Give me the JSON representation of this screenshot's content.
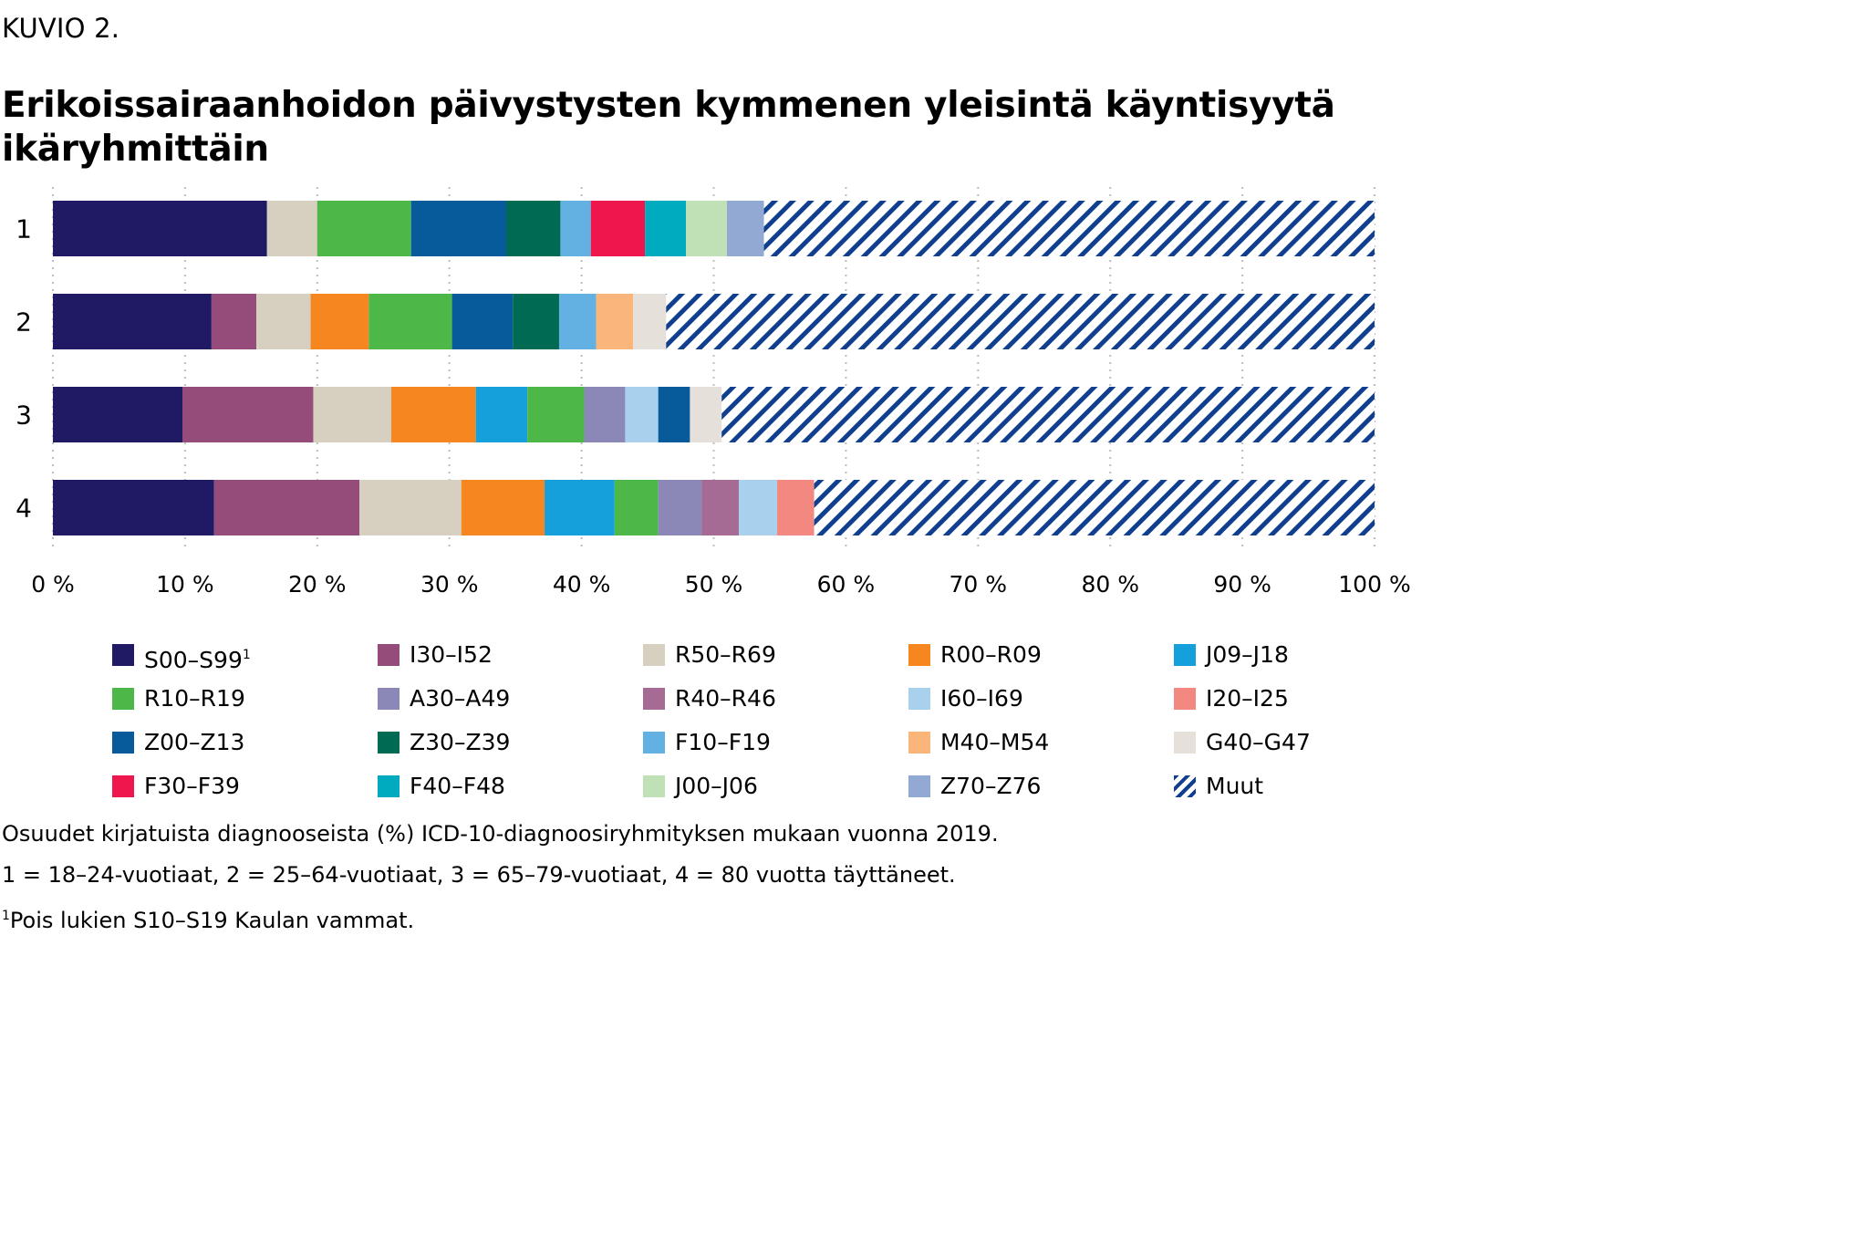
{
  "figure_label": "KUVIO 2.",
  "title_line1": "Erikoissairaanhoidon päivystysten kymmenen yleisintä käyntisyytä",
  "title_line2": "ikäryhmittäin",
  "chart_data": {
    "type": "bar",
    "orientation": "horizontal",
    "stacked": true,
    "title": "Erikoissairaanhoidon päivystysten kymmenen yleisintä käyntisyytä ikäryhmittäin",
    "categories": [
      "1",
      "2",
      "3",
      "4"
    ],
    "xlim": [
      0,
      100
    ],
    "x_tick_labels": [
      "0 %",
      "10 %",
      "20 %",
      "30 %",
      "40 %",
      "50 %",
      "60 %",
      "70 %",
      "80 %",
      "90 %",
      "100 %"
    ],
    "grid": "vertical dotted",
    "legend_position": "bottom",
    "series_colors": {
      "S00–S99": "#1f1a63",
      "I30–I52": "#954c7b",
      "R50–R69": "#d7cfbf",
      "R00–R09": "#f58620",
      "J09–J18": "#16a0db",
      "R10–R19": "#4db848",
      "A30–A49": "#8b88b8",
      "R40–R46": "#a66b95",
      "I60–I69": "#a9d1ee",
      "I20–I25": "#f28880",
      "Z00–Z13": "#075b9b",
      "Z30–Z39": "#006b52",
      "F10–F19": "#63b1e2",
      "M40–M54": "#f9b57a",
      "G40–G47": "#e5e1da",
      "F30–F39": "#ed174d",
      "F40–F48": "#00abc0",
      "J00–J06": "#bfe1b5",
      "Z70–Z76": "#92a9d3",
      "Muut": "#103f8f"
    },
    "bars": [
      {
        "category": "1",
        "segments": [
          {
            "series": "S00–S99",
            "value": 16.2
          },
          {
            "series": "R50–R69",
            "value": 3.8
          },
          {
            "series": "R10–R19",
            "value": 7.1
          },
          {
            "series": "Z00–Z13",
            "value": 7.2
          },
          {
            "series": "Z30–Z39",
            "value": 4.1
          },
          {
            "series": "F10–F19",
            "value": 2.3
          },
          {
            "series": "F30–F39",
            "value": 4.1
          },
          {
            "series": "F40–F48",
            "value": 3.1
          },
          {
            "series": "J00–J06",
            "value": 3.1
          },
          {
            "series": "Z70–Z76",
            "value": 2.8
          },
          {
            "series": "Muut",
            "value": 46.2
          }
        ]
      },
      {
        "category": "2",
        "segments": [
          {
            "series": "S00–S99",
            "value": 12.0
          },
          {
            "series": "I30–I52",
            "value": 3.4
          },
          {
            "series": "R50–R69",
            "value": 4.1
          },
          {
            "series": "R00–R09",
            "value": 4.4
          },
          {
            "series": "R10–R19",
            "value": 6.3
          },
          {
            "series": "Z00–Z13",
            "value": 4.6
          },
          {
            "series": "Z30–Z39",
            "value": 3.5
          },
          {
            "series": "F10–F19",
            "value": 2.8
          },
          {
            "series": "M40–M54",
            "value": 2.8
          },
          {
            "series": "G40–G47",
            "value": 2.5
          },
          {
            "series": "Muut",
            "value": 53.6
          }
        ]
      },
      {
        "category": "3",
        "segments": [
          {
            "series": "S00–S99",
            "value": 9.8
          },
          {
            "series": "I30–I52",
            "value": 9.9
          },
          {
            "series": "R50–R69",
            "value": 5.9
          },
          {
            "series": "R00–R09",
            "value": 6.4
          },
          {
            "series": "J09–J18",
            "value": 3.9
          },
          {
            "series": "R10–R19",
            "value": 4.3
          },
          {
            "series": "A30–A49",
            "value": 3.1
          },
          {
            "series": "I60–I69",
            "value": 2.5
          },
          {
            "series": "Z00–Z13",
            "value": 2.4
          },
          {
            "series": "G40–G47",
            "value": 2.4
          },
          {
            "series": "Muut",
            "value": 49.4
          }
        ]
      },
      {
        "category": "4",
        "segments": [
          {
            "series": "S00–S99",
            "value": 12.2
          },
          {
            "series": "I30–I52",
            "value": 11.0
          },
          {
            "series": "R50–R69",
            "value": 7.7
          },
          {
            "series": "R00–R09",
            "value": 6.3
          },
          {
            "series": "J09–J18",
            "value": 5.3
          },
          {
            "series": "R10–R19",
            "value": 3.3
          },
          {
            "series": "A30–A49",
            "value": 3.3
          },
          {
            "series": "R40–R46",
            "value": 2.8
          },
          {
            "series": "I60–I69",
            "value": 2.9
          },
          {
            "series": "I20–I25",
            "value": 2.8
          },
          {
            "series": "Muut",
            "value": 42.4
          }
        ]
      }
    ]
  },
  "legend": [
    {
      "label": "S00–S99",
      "sup": "1",
      "color": "#1f1a63"
    },
    {
      "label": "I30–I52",
      "color": "#954c7b"
    },
    {
      "label": "R50–R69",
      "color": "#d7cfbf"
    },
    {
      "label": "R00–R09",
      "color": "#f58620"
    },
    {
      "label": "J09–J18",
      "color": "#16a0db"
    },
    {
      "label": "R10–R19",
      "color": "#4db848"
    },
    {
      "label": "A30–A49",
      "color": "#8b88b8"
    },
    {
      "label": "R40–R46",
      "color": "#a66b95"
    },
    {
      "label": "I60–I69",
      "color": "#a9d1ee"
    },
    {
      "label": "I20–I25",
      "color": "#f28880"
    },
    {
      "label": "Z00–Z13",
      "color": "#075b9b"
    },
    {
      "label": "Z30–Z39",
      "color": "#006b52"
    },
    {
      "label": "F10–F19",
      "color": "#63b1e2"
    },
    {
      "label": "M40–M54",
      "color": "#f9b57a"
    },
    {
      "label": "G40–G47",
      "color": "#e5e1da"
    },
    {
      "label": "F30–F39",
      "color": "#ed174d"
    },
    {
      "label": "F40–F48",
      "color": "#00abc0"
    },
    {
      "label": "J00–J06",
      "color": "#bfe1b5"
    },
    {
      "label": "Z70–Z76",
      "color": "#92a9d3"
    },
    {
      "label": "Muut",
      "color": "#103f8f",
      "pattern": "hatched"
    }
  ],
  "notes": {
    "source_note": "Osuudet kirjatuista diagnooseista (%) ICD-10-diagnoosiryhmityksen mukaan vuonna 2019.",
    "age_groups": "1 = 18–24-vuotiaat, 2 = 25–64-vuotiaat, 3 = 65–79-vuotiaat, 4 = 80 vuotta täyttäneet.",
    "footnote_marker": "1",
    "footnote_text": "Pois lukien S10–S19 Kaulan vammat."
  }
}
